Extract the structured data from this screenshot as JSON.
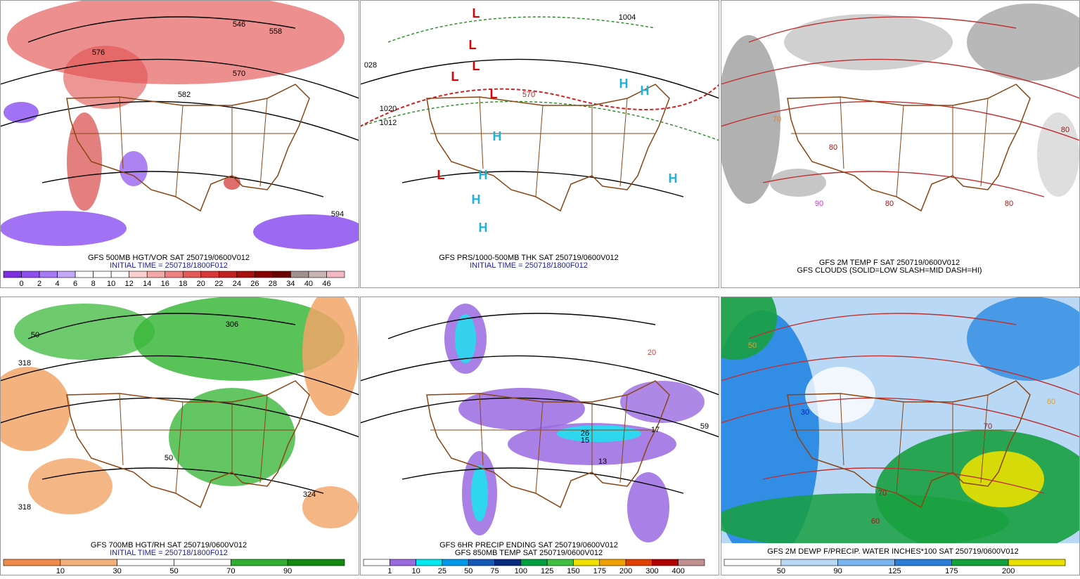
{
  "panels": [
    {
      "captions": [
        "GFS 500MB HGT/VOR SAT 250719/0600V012",
        "INITIAL TIME = 250718/1800F012"
      ],
      "caption_colors": [
        "#000000",
        "#1a1aa0"
      ],
      "map_labels": [
        "576",
        "546",
        "558",
        "570",
        "582",
        "594"
      ],
      "colorbar": {
        "labels": [
          0,
          2,
          4,
          6,
          8,
          10,
          12,
          14,
          16,
          18,
          20,
          22,
          24,
          26,
          28,
          34,
          40,
          46
        ],
        "colors": [
          "#7b2fe0",
          "#8f4ff0",
          "#a77af5",
          "#c4a8f8",
          "#ffffff",
          "#ffffff",
          "#ffffff",
          "#fbd0d0",
          "#f5a8a8",
          "#ee8080",
          "#e45858",
          "#d83838",
          "#c42020",
          "#a81010",
          "#880000",
          "#6a0000",
          "#a09090",
          "#c8b4b4",
          "#f4b8c4"
        ]
      }
    },
    {
      "captions": [
        "GFS PRS/1000-500MB THK SAT 250719/0600V012",
        "INITIAL TIME = 250718/1800F012"
      ],
      "caption_colors": [
        "#000000",
        "#1a1aa0"
      ],
      "map_labels": [
        "L",
        "L",
        "L",
        "L",
        "L",
        "L",
        "H",
        "H",
        "H",
        "H",
        "H",
        "H",
        "H",
        "1020",
        "1012",
        "1004",
        "570",
        "028"
      ]
    },
    {
      "captions": [
        "GFS 2M TEMP F SAT 250719/0600V012",
        "GFS CLOUDS (SOLID=LOW SLASH=MID DASH=HI)"
      ],
      "caption_colors": [
        "#000000",
        "#000000"
      ],
      "map_labels": [
        "70",
        "80",
        "80",
        "90",
        "80",
        "80"
      ]
    },
    {
      "captions": [
        "GFS 700MB HGT/RH SAT 250719/0600V012",
        "INITIAL TIME = 250718/1800F012"
      ],
      "caption_colors": [
        "#000000",
        "#1a1aa0"
      ],
      "map_labels": [
        "318",
        "50",
        "324",
        "306",
        "318",
        "50"
      ],
      "colorbar": {
        "labels": [
          10,
          30,
          50,
          70,
          90
        ],
        "colors": [
          "#f08a4a",
          "#f4b07a",
          "#ffffff",
          "#ffffff",
          "#2fae2f",
          "#128a12"
        ]
      }
    },
    {
      "captions": [
        "GFS 6HR PRECIP ENDING SAT 250719/0600V012",
        "GFS 850MB TEMP SAT 250719/0600V012"
      ],
      "caption_colors": [
        "#000000",
        "#000000"
      ],
      "map_labels": [
        "20",
        "15",
        "26",
        "13",
        "17",
        "59"
      ],
      "colorbar": {
        "labels": [
          1,
          10,
          25,
          50,
          75,
          100,
          125,
          150,
          175,
          200,
          300,
          400
        ],
        "colors": [
          "#ffffff",
          "#9a6ae0",
          "#00e8f0",
          "#0098e8",
          "#1458b8",
          "#0a2a80",
          "#00a040",
          "#40c040",
          "#f0e000",
          "#f0a000",
          "#e04000",
          "#b00000",
          "#c09090"
        ]
      }
    },
    {
      "captions": [
        "GFS 2M DEWP F/PRECIP. WATER INCHES*100 SAT 250719/0600V012"
      ],
      "caption_colors": [
        "#000000"
      ],
      "map_labels": [
        "50",
        "60",
        "70",
        "30",
        "60",
        "70"
      ],
      "colorbar": {
        "labels": [
          50,
          90,
          125,
          175,
          200
        ],
        "colors": [
          "#ffffff",
          "#b8d8f5",
          "#78b4ee",
          "#2a7ed8",
          "#14a03a",
          "#e8e000"
        ]
      }
    }
  ]
}
